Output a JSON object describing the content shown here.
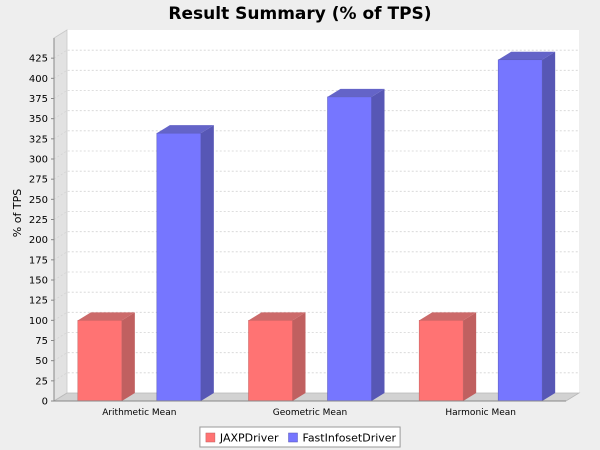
{
  "chart_data": {
    "type": "bar",
    "title": "Result Summary (% of TPS)",
    "xlabel": "",
    "ylabel": "% of TPS",
    "categories": [
      "Arithmetic Mean",
      "Geometric Mean",
      "Harmonic Mean"
    ],
    "series": [
      {
        "name": "JAXPDriver",
        "values": [
          100,
          100,
          100
        ],
        "color": "#ff7373",
        "side_color": "#c06060",
        "top_color": "#cc6a6a"
      },
      {
        "name": "FastInfosetDriver",
        "values": [
          332,
          377,
          423
        ],
        "color": "#7676ff",
        "side_color": "#5757b5",
        "top_color": "#6464c8"
      }
    ],
    "ylim": [
      0,
      450
    ],
    "yticks": [
      0,
      25,
      50,
      75,
      100,
      125,
      150,
      175,
      200,
      225,
      250,
      275,
      300,
      325,
      350,
      375,
      400,
      425
    ],
    "grid": true,
    "three_d": true,
    "legend_position": "bottom"
  }
}
